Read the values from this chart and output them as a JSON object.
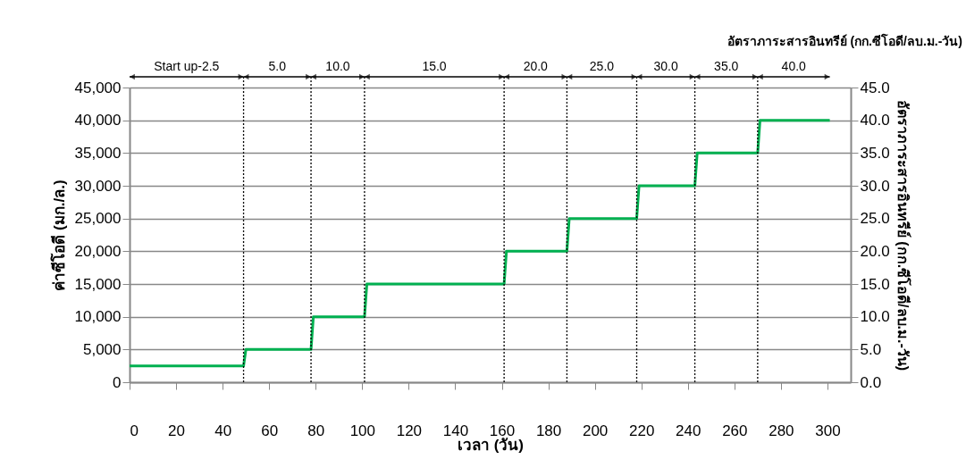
{
  "chart_data": {
    "type": "line",
    "xlabel": "เวลา (วัน)",
    "ylabel": "ค่าซีโอดี (มก./ล.)",
    "y2label": "อัตราภาระสารอินทรีย์ (กก.ซีโอดี/ลบ.ม.-วัน)",
    "annotations": [
      "อัตราภาระสารอินทรีย์ (กก.ซีโอดี/ลบ.ม.-วัน)",
      "Start up-2.5",
      "5.0",
      "10.0",
      "15.0",
      "20.0",
      "25.0",
      "30.0",
      "35.0",
      "40.0"
    ],
    "xlim": [
      0,
      310
    ],
    "xticks": [
      0,
      20,
      40,
      60,
      80,
      100,
      120,
      140,
      160,
      180,
      200,
      220,
      240,
      260,
      280,
      300
    ],
    "ylim": [
      0,
      45000
    ],
    "yticks": [
      {
        "value": 0,
        "label": "0"
      },
      {
        "value": 5000,
        "label": "5,000"
      },
      {
        "value": 10000,
        "label": "10,000"
      },
      {
        "value": 15000,
        "label": "15,000"
      },
      {
        "value": 20000,
        "label": "20,000"
      },
      {
        "value": 25000,
        "label": "25,000"
      },
      {
        "value": 30000,
        "label": "30,000"
      },
      {
        "value": 35000,
        "label": "35,000"
      },
      {
        "value": 40000,
        "label": "40,000"
      },
      {
        "value": 45000,
        "label": "45,000"
      }
    ],
    "y2lim": [
      0,
      45
    ],
    "y2ticks": [
      {
        "value": 0,
        "label": "0.0"
      },
      {
        "value": 5,
        "label": "5.0"
      },
      {
        "value": 10,
        "label": "10.0"
      },
      {
        "value": 15,
        "label": "15.0"
      },
      {
        "value": 20,
        "label": "20.0"
      },
      {
        "value": 25,
        "label": "25.0"
      },
      {
        "value": 30,
        "label": "30.0"
      },
      {
        "value": 35,
        "label": "35.0"
      },
      {
        "value": 40,
        "label": "40.0"
      },
      {
        "value": 45,
        "label": "45.0"
      }
    ],
    "grid": "y",
    "marker": "none",
    "line_style": "solid",
    "series": [
      {
        "color": "#00b050",
        "x": [
          0,
          49,
          50,
          78,
          79,
          101,
          102,
          161,
          162,
          188,
          189,
          218,
          219,
          243,
          244,
          270,
          271,
          301
        ],
        "values": [
          2500,
          2500,
          5000,
          5000,
          10000,
          10000,
          15000,
          15000,
          20000,
          20000,
          25000,
          25000,
          30000,
          30000,
          35000,
          35000,
          40000,
          40000
        ]
      }
    ],
    "ref_lines": [
      {
        "axis": "x",
        "value": 49,
        "color": "#000000",
        "line_style": "dotted"
      },
      {
        "axis": "x",
        "value": 78,
        "color": "#000000",
        "line_style": "dotted"
      },
      {
        "axis": "x",
        "value": 101,
        "color": "#000000",
        "line_style": "dotted"
      },
      {
        "axis": "x",
        "value": 161,
        "color": "#000000",
        "line_style": "dotted"
      },
      {
        "axis": "x",
        "value": 188,
        "color": "#000000",
        "line_style": "dotted"
      },
      {
        "axis": "x",
        "value": 218,
        "color": "#000000",
        "line_style": "dotted"
      },
      {
        "axis": "x",
        "value": 243,
        "color": "#000000",
        "line_style": "dotted"
      },
      {
        "axis": "x",
        "value": 270,
        "color": "#000000",
        "line_style": "dotted"
      }
    ]
  }
}
